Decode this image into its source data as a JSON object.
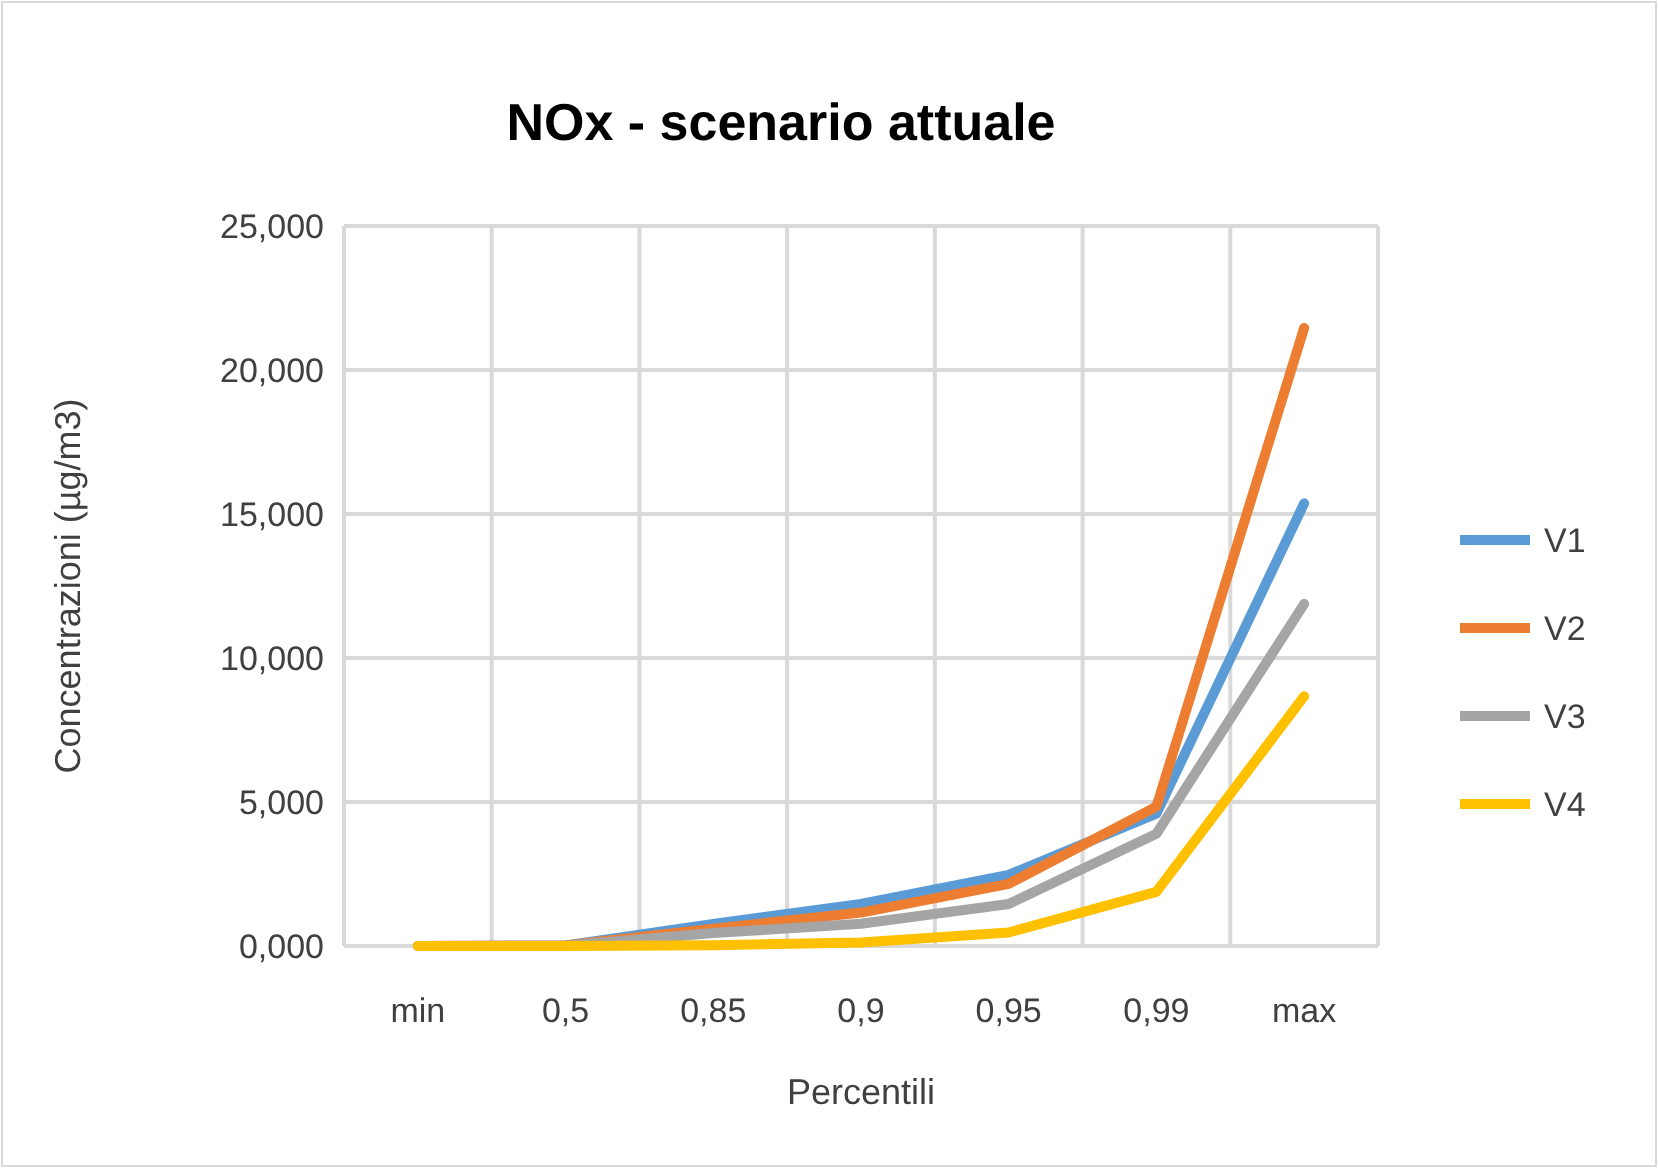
{
  "chart_data": {
    "type": "line",
    "title": "NOx - scenario attuale",
    "xlabel": "Percentili",
    "ylabel": "Concentrazioni (µg/m3)",
    "categories": [
      "min",
      "0,5",
      "0,85",
      "0,9",
      "0,95",
      "0,99",
      "max"
    ],
    "series": [
      {
        "name": "V1",
        "color": "#5b9bd5",
        "values": [
          0,
          0.02,
          0.77,
          1.46,
          2.47,
          4.6,
          15.37
        ]
      },
      {
        "name": "V2",
        "color": "#ed7d31",
        "values": [
          0,
          0.02,
          0.6,
          1.16,
          2.16,
          4.84,
          21.46
        ]
      },
      {
        "name": "V3",
        "color": "#a5a5a5",
        "values": [
          0,
          0.01,
          0.45,
          0.77,
          1.46,
          3.9,
          11.88
        ]
      },
      {
        "name": "V4",
        "color": "#ffc000",
        "values": [
          0,
          0,
          0.03,
          0.12,
          0.47,
          1.88,
          8.67
        ]
      }
    ],
    "ylim": [
      0,
      25
    ],
    "yticks": [
      {
        "value": 0,
        "label": "0,000"
      },
      {
        "value": 5,
        "label": "5,000"
      },
      {
        "value": 10,
        "label": "10,000"
      },
      {
        "value": 15,
        "label": "15,000"
      },
      {
        "value": 20,
        "label": "20,000"
      },
      {
        "value": 25,
        "label": "25,000"
      }
    ],
    "grid": true,
    "legend": "right",
    "marker": "none",
    "line_style": "solid"
  }
}
